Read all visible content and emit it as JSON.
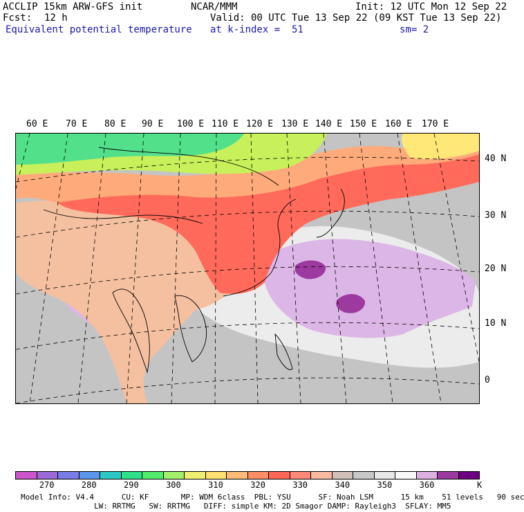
{
  "header": {
    "model": "ACCLIP 15km ARW-GFS init",
    "org": "NCAR/MMM",
    "init": "Init: 12 UTC Mon 12 Sep 22",
    "fcst_label": "Fcst:",
    "fcst_value": "12 h",
    "valid": "Valid: 00 UTC Tue 13 Sep 22 (09 KST Tue 13 Sep 22)",
    "field": "Equivalent potential temperature",
    "level": "at k-index =  51",
    "smooth": "sm= 2"
  },
  "map": {
    "lon_labels": [
      "60 E",
      "70 E",
      "80 E",
      "90 E",
      "100 E",
      "110 E",
      "120 E",
      "130 E",
      "140 E",
      "150 E",
      "160 E",
      "170 E"
    ],
    "lat_labels": [
      "40 N",
      "30 N",
      "20 N",
      "10 N",
      "0"
    ],
    "colors": {
      "cold": "#52e08a",
      "cool": "#c8f05a",
      "warm": "#ffaa7a",
      "hot": "#ff6a5a",
      "tan": "#f4c0a0",
      "gray": "#c4c4c4",
      "light": "#ececec",
      "lavender": "#dcb6e6",
      "purple": "#9c3aa0",
      "yellow": "#ffe878"
    }
  },
  "colorbar": {
    "colors": [
      "#cc55cc",
      "#9a6ad8",
      "#7b7be8",
      "#5a96ec",
      "#2cc8c4",
      "#2ee08c",
      "#52ec6c",
      "#a4f06c",
      "#f0f070",
      "#ffe070",
      "#ffbb77",
      "#ff8e66",
      "#ff6655",
      "#ff8877",
      "#f8bba0",
      "#d2c0b8",
      "#c8c8c8",
      "#e8e8e8",
      "#f8f8f8",
      "#ddb0e0",
      "#9c3aa0",
      "#6c0080"
    ],
    "labels": [
      "270",
      "280",
      "290",
      "300",
      "310",
      "320",
      "330",
      "340",
      "350",
      "360"
    ],
    "unit": "K"
  },
  "footer": {
    "line1": "Model Info: V4.4      CU: KF       MP: WDM 6class  PBL: YSU      SF: Noah LSM      15 km    51 levels   90 sec",
    "line2": "                LW: RRTMG   SW: RRTMG   DIFF: simple KM: 2D Smagor DAMP: Rayleigh3  SFLAY: MM5"
  }
}
